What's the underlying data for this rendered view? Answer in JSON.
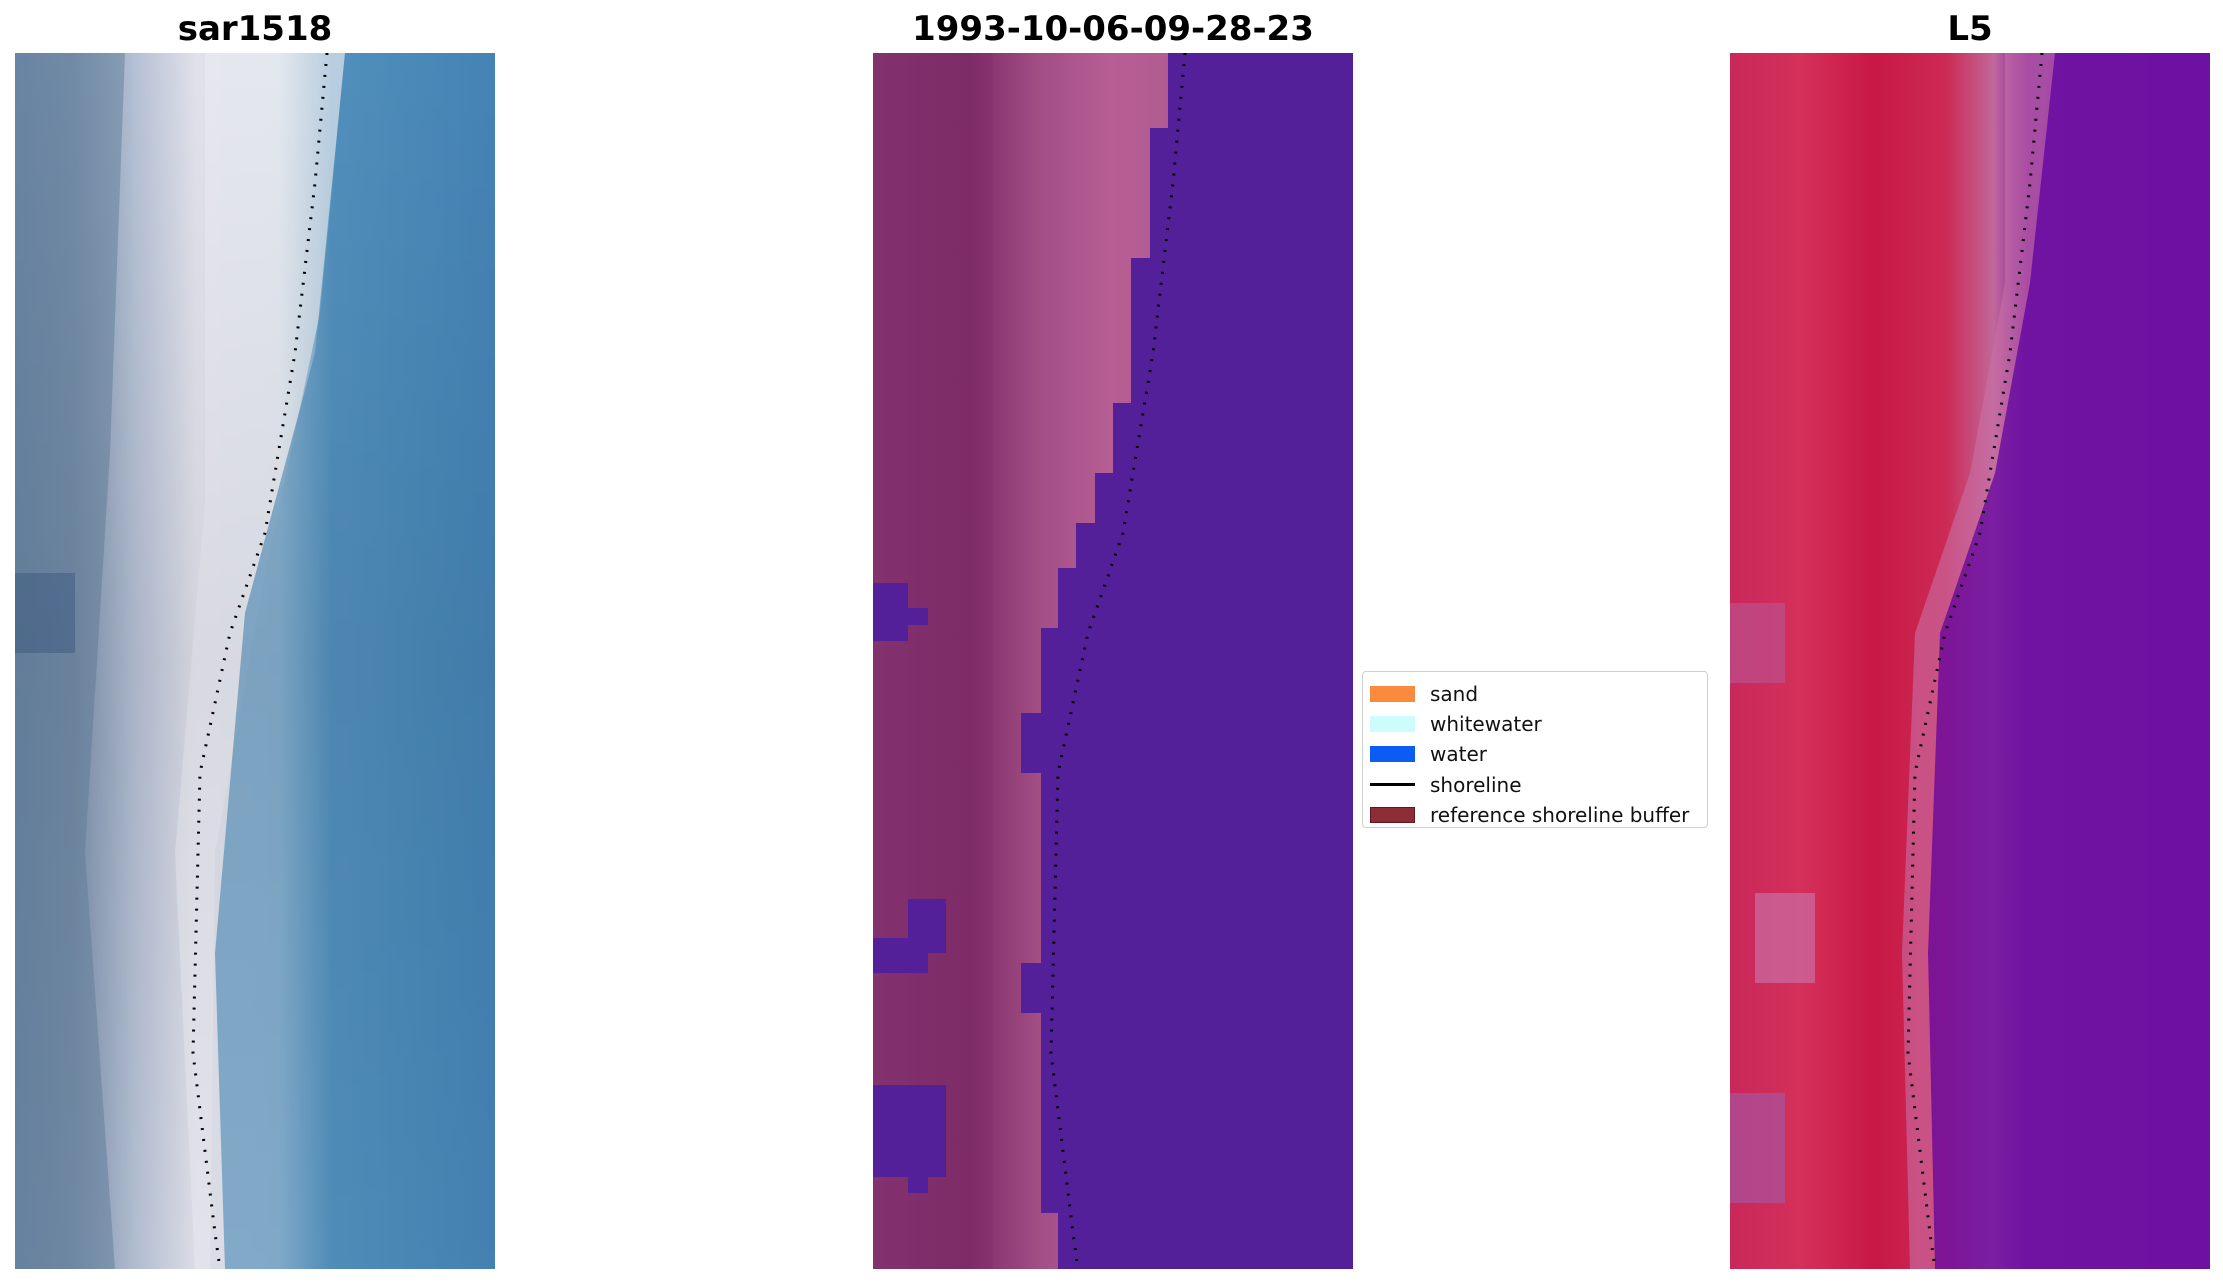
{
  "panels": [
    {
      "title": "sar1518",
      "image": "RGB satellite image"
    },
    {
      "title": "1993-10-06-09-28-23",
      "image": "classified image"
    },
    {
      "title": "L5",
      "image": "MNDWI image"
    }
  ],
  "legend": {
    "items": [
      {
        "label": "sand",
        "color": "#f98a3e",
        "kind": "patch"
      },
      {
        "label": "whitewater",
        "color": "#cdfcfc",
        "kind": "patch"
      },
      {
        "label": "water",
        "color": "#0a5cf2",
        "kind": "patch"
      },
      {
        "label": "shoreline",
        "color": "#000000",
        "kind": "line"
      },
      {
        "label": "reference shoreline buffer",
        "color": "#8e2d35",
        "kind": "patch",
        "edge": "#5a1a20"
      }
    ]
  }
}
